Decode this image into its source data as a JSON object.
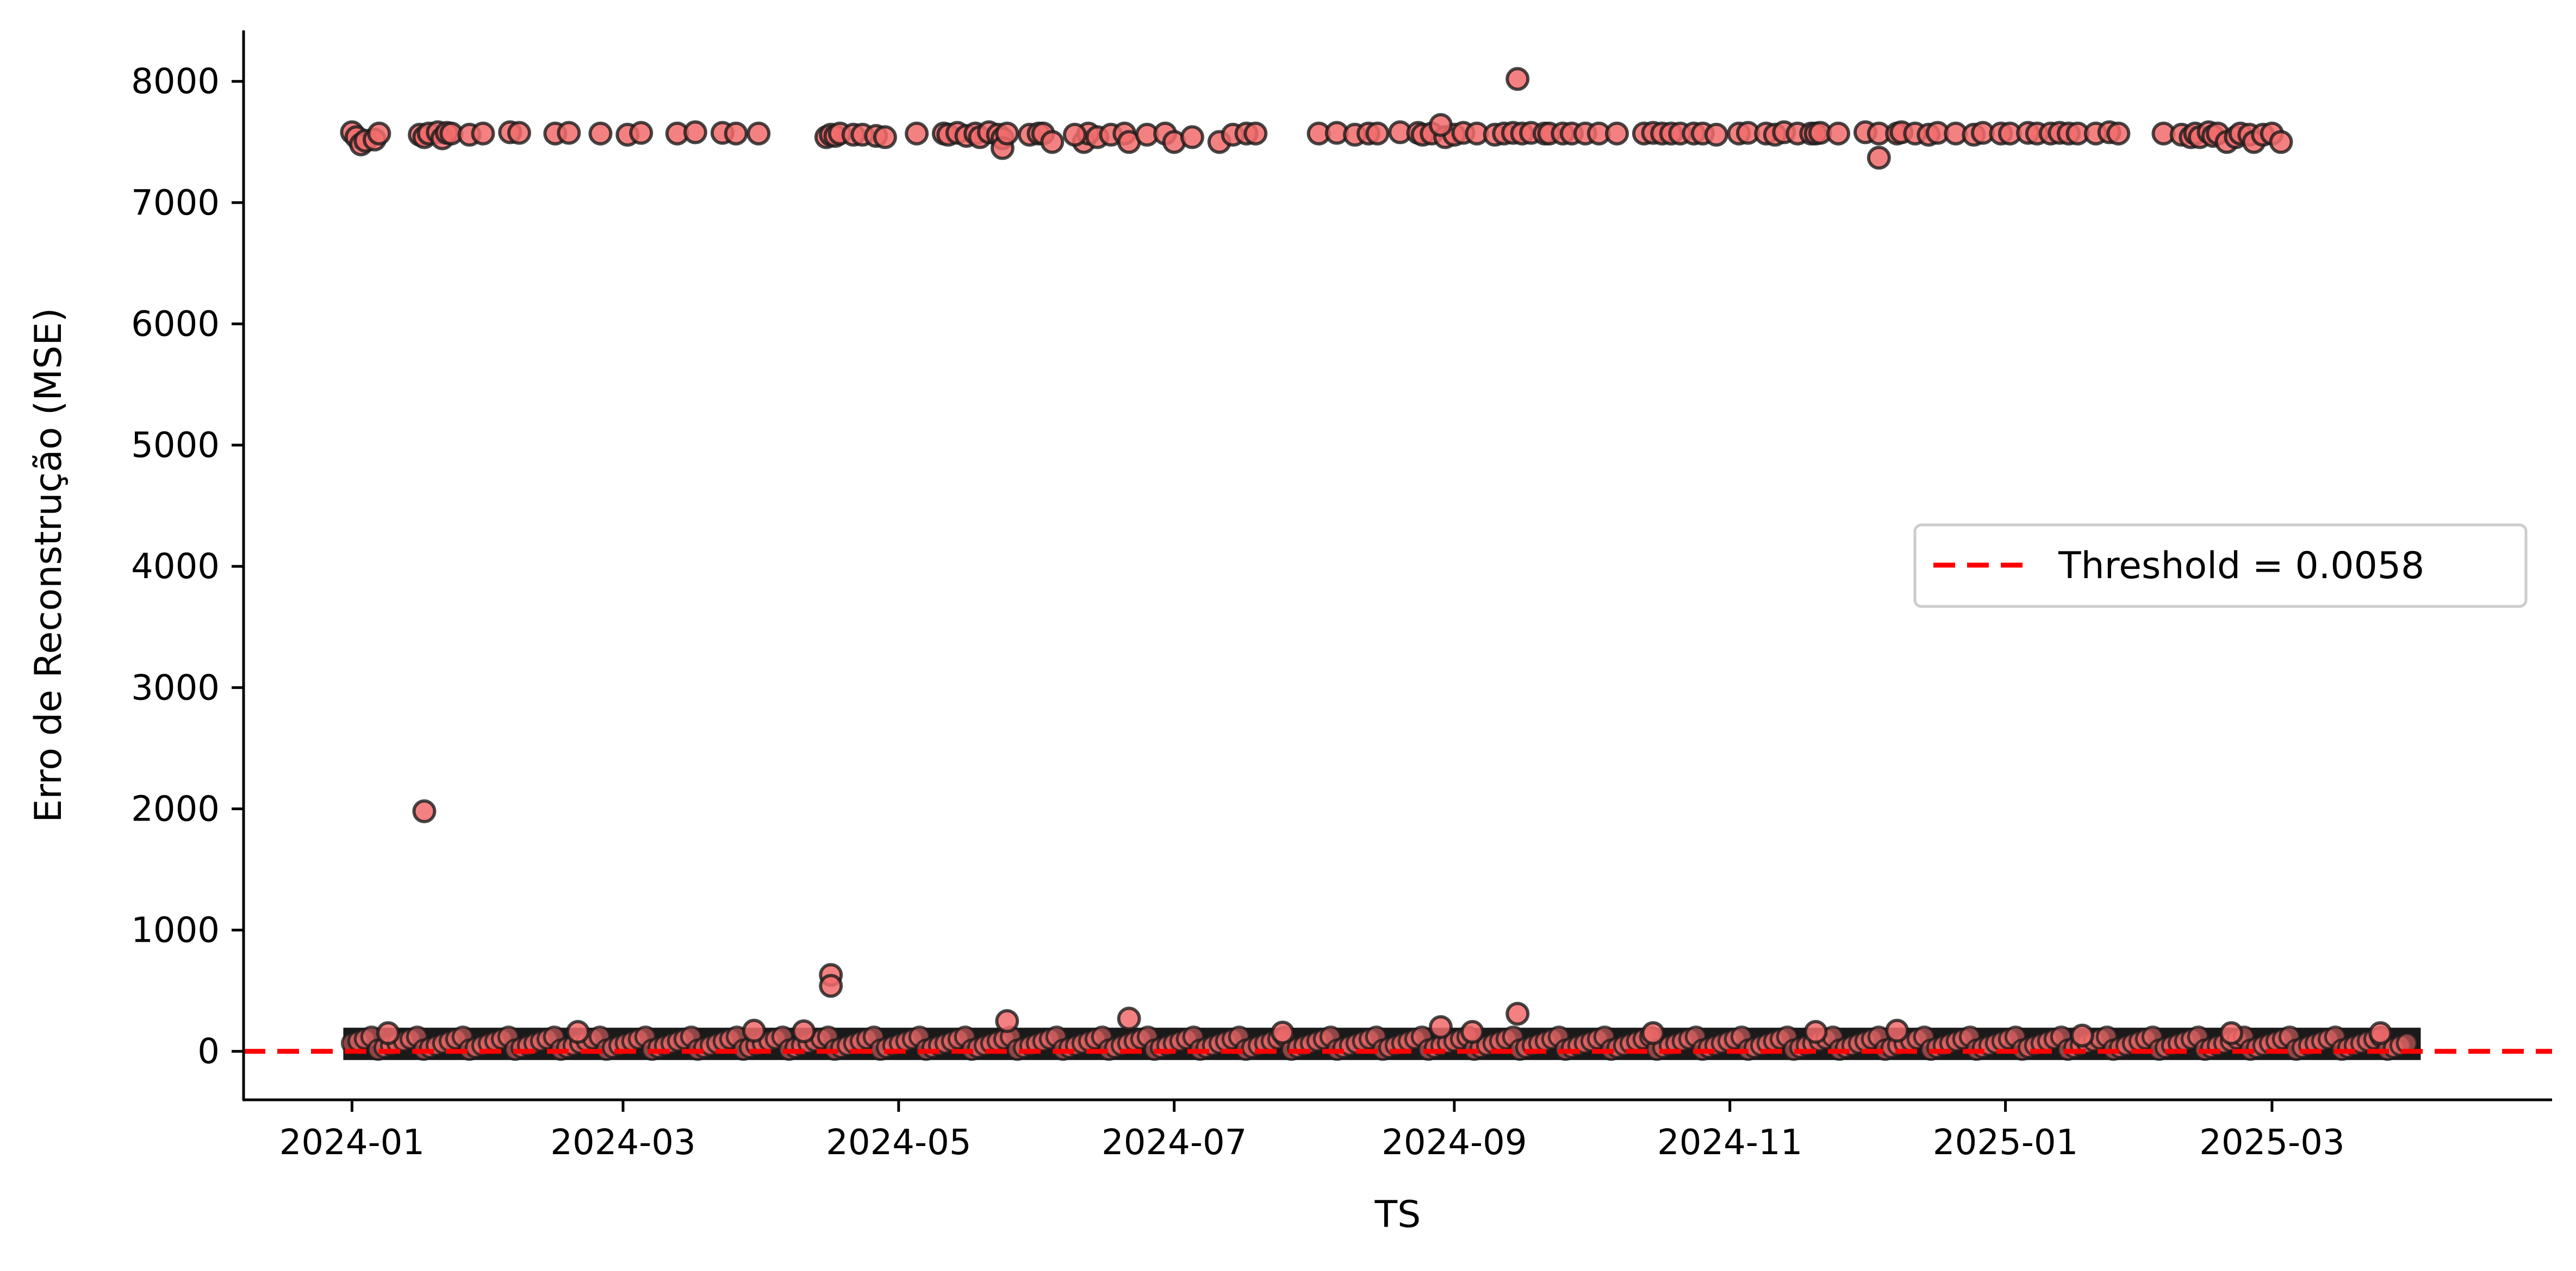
{
  "chart_data": {
    "type": "scatter",
    "title": "",
    "xlabel": "TS",
    "ylabel": "Erro de Reconstrução (MSE)",
    "x_scale": "date",
    "xlim": [
      "2023-12-08",
      "2025-05-02"
    ],
    "ylim": [
      -400,
      8420
    ],
    "x_tick_labels": [
      "2024-01",
      "2024-03",
      "2024-05",
      "2024-07",
      "2024-09",
      "2024-11",
      "2025-01",
      "2025-03"
    ],
    "x_tick_values": [
      "2024-01-01",
      "2024-03-01",
      "2024-05-01",
      "2024-07-01",
      "2024-09-01",
      "2024-11-01",
      "2025-01-01",
      "2025-03-01"
    ],
    "y_ticks": [
      0,
      1000,
      2000,
      3000,
      4000,
      5000,
      6000,
      7000,
      8000
    ],
    "grid": false,
    "legend": {
      "position": "right",
      "entries": [
        "Threshold = 0.0058"
      ]
    },
    "threshold": {
      "label": "Threshold = 0.0058",
      "value": 0.0058,
      "color": "#ff0000",
      "style": "dashed"
    },
    "marker": {
      "fill": "#f26b6b",
      "edge": "#1a1a1a"
    },
    "dense_band": {
      "x_start": "2024-01-01",
      "x_end": "2025-04-01",
      "y_min": 0,
      "y_max": 150
    },
    "points": [
      {
        "x": "2024-01-01",
        "y": 7580
      },
      {
        "x": "2024-01-02",
        "y": 7540
      },
      {
        "x": "2024-01-03",
        "y": 7480
      },
      {
        "x": "2024-01-04",
        "y": 7510
      },
      {
        "x": "2024-01-06",
        "y": 7520
      },
      {
        "x": "2024-01-07",
        "y": 7570
      },
      {
        "x": "2024-01-16",
        "y": 7560
      },
      {
        "x": "2024-01-17",
        "y": 7540
      },
      {
        "x": "2024-01-18",
        "y": 7570
      },
      {
        "x": "2024-01-20",
        "y": 7580
      },
      {
        "x": "2024-01-21",
        "y": 7530
      },
      {
        "x": "2024-01-22",
        "y": 7575
      },
      {
        "x": "2024-01-23",
        "y": 7570
      },
      {
        "x": "2024-01-27",
        "y": 7560
      },
      {
        "x": "2024-01-30",
        "y": 7570
      },
      {
        "x": "2024-02-05",
        "y": 7580
      },
      {
        "x": "2024-02-07",
        "y": 7575
      },
      {
        "x": "2024-02-15",
        "y": 7570
      },
      {
        "x": "2024-02-18",
        "y": 7575
      },
      {
        "x": "2024-02-25",
        "y": 7570
      },
      {
        "x": "2024-03-02",
        "y": 7560
      },
      {
        "x": "2024-03-05",
        "y": 7575
      },
      {
        "x": "2024-03-13",
        "y": 7570
      },
      {
        "x": "2024-03-17",
        "y": 7580
      },
      {
        "x": "2024-03-23",
        "y": 7575
      },
      {
        "x": "2024-03-26",
        "y": 7570
      },
      {
        "x": "2024-03-31",
        "y": 7570
      },
      {
        "x": "2024-04-15",
        "y": 7540
      },
      {
        "x": "2024-04-16",
        "y": 7560
      },
      {
        "x": "2024-04-17",
        "y": 7550
      },
      {
        "x": "2024-04-18",
        "y": 7570
      },
      {
        "x": "2024-04-21",
        "y": 7560
      },
      {
        "x": "2024-04-23",
        "y": 7560
      },
      {
        "x": "2024-04-26",
        "y": 7550
      },
      {
        "x": "2024-04-28",
        "y": 7540
      },
      {
        "x": "2024-05-05",
        "y": 7570
      },
      {
        "x": "2024-05-11",
        "y": 7570
      },
      {
        "x": "2024-05-12",
        "y": 7560
      },
      {
        "x": "2024-05-14",
        "y": 7575
      },
      {
        "x": "2024-05-16",
        "y": 7550
      },
      {
        "x": "2024-05-18",
        "y": 7570
      },
      {
        "x": "2024-05-19",
        "y": 7540
      },
      {
        "x": "2024-05-21",
        "y": 7580
      },
      {
        "x": "2024-05-23",
        "y": 7560
      },
      {
        "x": "2024-05-24",
        "y": 7530
      },
      {
        "x": "2024-05-24",
        "y": 7450
      },
      {
        "x": "2024-05-25",
        "y": 7570
      },
      {
        "x": "2024-05-30",
        "y": 7560
      },
      {
        "x": "2024-06-01",
        "y": 7570
      },
      {
        "x": "2024-06-02",
        "y": 7570
      },
      {
        "x": "2024-06-04",
        "y": 7500
      },
      {
        "x": "2024-06-11",
        "y": 7500
      },
      {
        "x": "2024-06-12",
        "y": 7570
      },
      {
        "x": "2024-06-14",
        "y": 7540
      },
      {
        "x": "2024-06-17",
        "y": 7560
      },
      {
        "x": "2024-06-20",
        "y": 7570
      },
      {
        "x": "2024-06-21",
        "y": 7500
      },
      {
        "x": "2024-06-25",
        "y": 7560
      },
      {
        "x": "2024-06-29",
        "y": 7570
      },
      {
        "x": "2024-07-11",
        "y": 7500
      },
      {
        "x": "2024-07-14",
        "y": 7560
      },
      {
        "x": "2024-07-17",
        "y": 7570
      },
      {
        "x": "2024-07-19",
        "y": 7570
      },
      {
        "x": "2024-08-02",
        "y": 7570
      },
      {
        "x": "2024-08-06",
        "y": 7575
      },
      {
        "x": "2024-08-10",
        "y": 7560
      },
      {
        "x": "2024-08-13",
        "y": 7570
      },
      {
        "x": "2024-08-15",
        "y": 7570
      },
      {
        "x": "2024-08-20",
        "y": 7580
      },
      {
        "x": "2024-08-24",
        "y": 7575
      },
      {
        "x": "2024-08-25",
        "y": 7560
      },
      {
        "x": "2024-08-27",
        "y": 7570
      },
      {
        "x": "2024-08-30",
        "y": 7540
      },
      {
        "x": "2024-09-01",
        "y": 7560
      },
      {
        "x": "2024-09-03",
        "y": 7575
      },
      {
        "x": "2024-09-06",
        "y": 7570
      },
      {
        "x": "2024-09-10",
        "y": 7560
      },
      {
        "x": "2024-09-12",
        "y": 7570
      },
      {
        "x": "2024-09-14",
        "y": 7575
      },
      {
        "x": "2024-09-16",
        "y": 7570
      },
      {
        "x": "2024-09-18",
        "y": 7575
      },
      {
        "x": "2024-09-21",
        "y": 7570
      },
      {
        "x": "2024-09-22",
        "y": 7570
      },
      {
        "x": "2024-09-25",
        "y": 7570
      },
      {
        "x": "2024-09-27",
        "y": 7570
      },
      {
        "x": "2024-09-30",
        "y": 7570
      },
      {
        "x": "2024-10-03",
        "y": 7570
      },
      {
        "x": "2024-10-07",
        "y": 7570
      },
      {
        "x": "2024-10-13",
        "y": 7570
      },
      {
        "x": "2024-10-15",
        "y": 7575
      },
      {
        "x": "2024-10-17",
        "y": 7570
      },
      {
        "x": "2024-10-19",
        "y": 7570
      },
      {
        "x": "2024-10-21",
        "y": 7570
      },
      {
        "x": "2024-10-24",
        "y": 7570
      },
      {
        "x": "2024-10-26",
        "y": 7570
      },
      {
        "x": "2024-10-29",
        "y": 7560
      },
      {
        "x": "2024-11-03",
        "y": 7570
      },
      {
        "x": "2024-11-05",
        "y": 7575
      },
      {
        "x": "2024-11-09",
        "y": 7570
      },
      {
        "x": "2024-11-11",
        "y": 7560
      },
      {
        "x": "2024-11-13",
        "y": 7580
      },
      {
        "x": "2024-11-16",
        "y": 7570
      },
      {
        "x": "2024-11-19",
        "y": 7570
      },
      {
        "x": "2024-11-20",
        "y": 7570
      },
      {
        "x": "2024-11-21",
        "y": 7575
      },
      {
        "x": "2024-11-25",
        "y": 7570
      },
      {
        "x": "2024-12-01",
        "y": 7580
      },
      {
        "x": "2024-12-04",
        "y": 7570
      },
      {
        "x": "2024-12-08",
        "y": 7570
      },
      {
        "x": "2024-12-09",
        "y": 7580
      },
      {
        "x": "2024-12-12",
        "y": 7570
      },
      {
        "x": "2024-12-15",
        "y": 7560
      },
      {
        "x": "2024-12-17",
        "y": 7575
      },
      {
        "x": "2024-12-21",
        "y": 7570
      },
      {
        "x": "2024-12-25",
        "y": 7560
      },
      {
        "x": "2024-12-27",
        "y": 7575
      },
      {
        "x": "2024-12-31",
        "y": 7570
      },
      {
        "x": "2025-01-02",
        "y": 7570
      },
      {
        "x": "2025-01-06",
        "y": 7575
      },
      {
        "x": "2025-01-08",
        "y": 7570
      },
      {
        "x": "2025-01-11",
        "y": 7570
      },
      {
        "x": "2025-01-13",
        "y": 7575
      },
      {
        "x": "2025-01-15",
        "y": 7570
      },
      {
        "x": "2025-01-17",
        "y": 7570
      },
      {
        "x": "2025-01-21",
        "y": 7570
      },
      {
        "x": "2025-01-24",
        "y": 7580
      },
      {
        "x": "2025-01-26",
        "y": 7570
      },
      {
        "x": "2025-02-05",
        "y": 7570
      },
      {
        "x": "2025-02-09",
        "y": 7560
      },
      {
        "x": "2025-02-11",
        "y": 7540
      },
      {
        "x": "2025-02-12",
        "y": 7570
      },
      {
        "x": "2025-02-13",
        "y": 7540
      },
      {
        "x": "2025-02-15",
        "y": 7580
      },
      {
        "x": "2025-02-16",
        "y": 7550
      },
      {
        "x": "2025-02-17",
        "y": 7570
      },
      {
        "x": "2025-02-19",
        "y": 7500
      },
      {
        "x": "2025-02-21",
        "y": 7540
      },
      {
        "x": "2025-02-22",
        "y": 7570
      },
      {
        "x": "2025-02-24",
        "y": 7560
      },
      {
        "x": "2025-02-25",
        "y": 7500
      },
      {
        "x": "2025-02-27",
        "y": 7560
      },
      {
        "x": "2025-03-01",
        "y": 7570
      },
      {
        "x": "2025-03-03",
        "y": 7500
      },
      {
        "x": "2024-12-04",
        "y": 7370
      },
      {
        "x": "2024-09-15",
        "y": 8020
      },
      {
        "x": "2024-08-29",
        "y": 7640
      },
      {
        "x": "2024-07-01",
        "y": 7500
      },
      {
        "x": "2024-07-05",
        "y": 7540
      },
      {
        "x": "2024-06-09",
        "y": 7560
      },
      {
        "x": "2024-01-17",
        "y": 1980
      },
      {
        "x": "2024-04-16",
        "y": 630
      },
      {
        "x": "2024-04-16",
        "y": 540
      },
      {
        "x": "2024-09-15",
        "y": 310
      },
      {
        "x": "2024-06-21",
        "y": 270
      },
      {
        "x": "2024-05-25",
        "y": 250
      },
      {
        "x": "2024-08-29",
        "y": 200
      },
      {
        "x": "2024-01-09",
        "y": 150
      },
      {
        "x": "2024-02-20",
        "y": 160
      },
      {
        "x": "2024-03-30",
        "y": 170
      },
      {
        "x": "2024-04-10",
        "y": 165
      },
      {
        "x": "2024-07-25",
        "y": 155
      },
      {
        "x": "2024-10-15",
        "y": 150
      },
      {
        "x": "2024-11-20",
        "y": 160
      },
      {
        "x": "2024-12-08",
        "y": 170
      },
      {
        "x": "2025-02-20",
        "y": 150
      },
      {
        "x": "2025-03-25",
        "y": 150
      },
      {
        "x": "2025-01-18",
        "y": 130
      },
      {
        "x": "2024-09-05",
        "y": 160
      }
    ]
  }
}
